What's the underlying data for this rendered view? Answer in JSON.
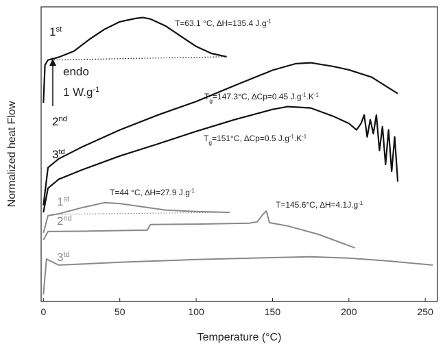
{
  "chart_data": {
    "type": "line",
    "x_label": "Temperature (°C)",
    "y_label": "Normalized heat Flow",
    "xlim": [
      -1.5,
      258
    ],
    "xticks": [
      0,
      50,
      100,
      150,
      200,
      250
    ],
    "ylim": [
      0,
      6.32
    ],
    "scale_bar": {
      "top_label": "endo",
      "bottom_label": [
        {
          "text": "1 W.g"
        },
        {
          "text": "-1",
          "style": "sup"
        }
      ]
    },
    "series": [
      {
        "color": "#111111",
        "label": [
          {
            "text": "1"
          },
          {
            "text": "st",
            "style": "sup"
          }
        ],
        "annotation": [
          {
            "text": "T=63.1 °C, ∆H=135.4 J.g"
          },
          {
            "text": "-1",
            "style": "sup"
          }
        ],
        "x": [
          0,
          1,
          3,
          10,
          20,
          30,
          40,
          50,
          60,
          65,
          70,
          80,
          90,
          100,
          110,
          120
        ],
        "values": [
          4.26,
          5.07,
          5.18,
          5.24,
          5.37,
          5.62,
          5.84,
          6.0,
          6.07,
          6.09,
          6.06,
          5.91,
          5.69,
          5.47,
          5.32,
          5.25
        ]
      },
      {
        "color": "#111111",
        "label": [
          {
            "text": "2"
          },
          {
            "text": "nd",
            "style": "sup"
          }
        ],
        "annotation": [
          {
            "text": "T"
          },
          {
            "text": "g",
            "style": "sub"
          },
          {
            "text": "=147.3°C, ∆Cp=0.45 J.g"
          },
          {
            "text": "-1",
            "style": "sup"
          },
          {
            "text": ".K"
          },
          {
            "text": "-1",
            "style": "sup"
          }
        ],
        "x": [
          0,
          3,
          10,
          25,
          50,
          75,
          100,
          125,
          150,
          165,
          175,
          190,
          200,
          215,
          232
        ],
        "values": [
          2.06,
          2.87,
          3.06,
          3.31,
          3.68,
          4.0,
          4.29,
          4.63,
          4.96,
          5.1,
          5.12,
          5.04,
          4.97,
          4.81,
          4.46
        ]
      },
      {
        "color": "#111111",
        "label": [
          {
            "text": "3"
          },
          {
            "text": "td",
            "style": "sup"
          }
        ],
        "annotation": [
          {
            "text": "T"
          },
          {
            "text": "g",
            "style": "sub"
          },
          {
            "text": "=151°C, ∆Cp=0.5 J.g"
          },
          {
            "text": "-1",
            "style": "sup"
          },
          {
            "text": ".K"
          },
          {
            "text": "-1",
            "style": "sup"
          }
        ],
        "x": [
          0,
          3,
          10,
          25,
          50,
          75,
          100,
          125,
          150,
          160,
          175,
          190,
          200,
          205,
          208,
          210,
          212,
          214,
          216,
          218,
          220,
          222,
          224,
          226,
          228,
          230,
          232
        ],
        "values": [
          1.91,
          2.43,
          2.62,
          2.82,
          3.12,
          3.38,
          3.65,
          3.9,
          4.12,
          4.18,
          4.15,
          3.97,
          3.82,
          3.68,
          3.82,
          4.0,
          3.53,
          3.9,
          3.6,
          4.0,
          3.24,
          3.75,
          2.94,
          3.68,
          2.79,
          3.53,
          2.57
        ]
      },
      {
        "color": "#888888",
        "label": [
          {
            "text": "1"
          },
          {
            "text": "st",
            "style": "sup"
          }
        ],
        "annotation": [
          {
            "text": "T=44 °C, ∆H=27.9 J.g"
          },
          {
            "text": "-1",
            "style": "sup"
          }
        ],
        "x": [
          0,
          3,
          10,
          25,
          40,
          50,
          65,
          80,
          100,
          122
        ],
        "values": [
          1.47,
          1.84,
          1.88,
          2.01,
          2.12,
          2.1,
          2.03,
          1.96,
          1.93,
          1.91
        ]
      },
      {
        "color": "#888888",
        "label": [
          {
            "text": "2"
          },
          {
            "text": "nd",
            "style": "sup"
          }
        ],
        "annotation": [
          {
            "text": "T=145.6°C, ∆H=4.1J.g"
          },
          {
            "text": "-1",
            "style": "sup"
          }
        ],
        "x": [
          0,
          3,
          30,
          68,
          70,
          100,
          135,
          140,
          144,
          146,
          148,
          160,
          180,
          204
        ],
        "values": [
          1.32,
          1.5,
          1.51,
          1.53,
          1.65,
          1.66,
          1.68,
          1.71,
          1.88,
          1.94,
          1.69,
          1.62,
          1.44,
          1.15
        ]
      },
      {
        "color": "#888888",
        "label": [
          {
            "text": "3"
          },
          {
            "text": "td",
            "style": "sup"
          }
        ],
        "x": [
          0,
          2,
          10,
          50,
          100,
          150,
          175,
          200,
          225,
          255
        ],
        "values": [
          0.15,
          0.91,
          0.78,
          0.84,
          0.9,
          0.94,
          0.96,
          0.93,
          0.87,
          0.78
        ]
      }
    ],
    "baselines": [
      {
        "color": "#111111",
        "x": [
          5,
          120
        ],
        "values": [
          5.18,
          5.25
        ]
      },
      {
        "color": "#888888",
        "x": [
          5,
          122
        ],
        "values": [
          1.87,
          1.91
        ]
      }
    ]
  }
}
